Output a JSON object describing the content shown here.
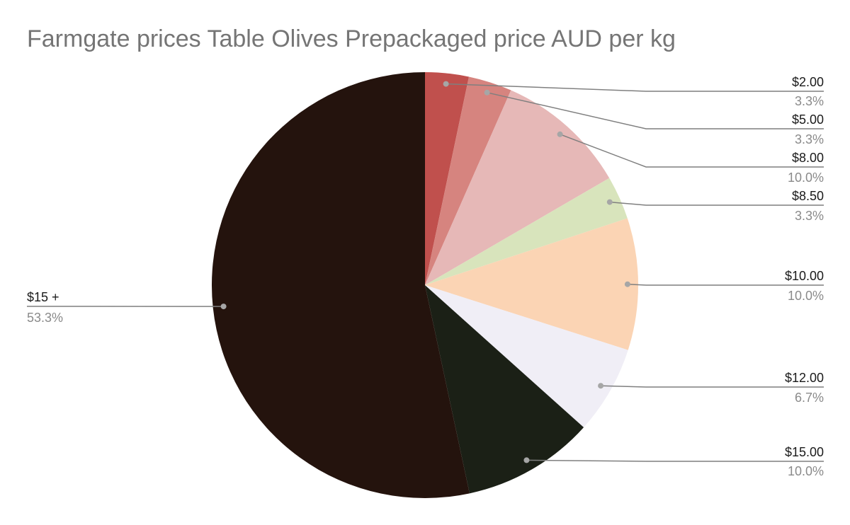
{
  "chart_data": {
    "type": "pie",
    "title": "Farmgate prices Table Olives Prepackaged price AUD per kg",
    "categories": [
      "$2.00",
      "$5.00",
      "$8.00",
      "$8.50",
      "$10.00",
      "$12.00",
      "$15.00",
      "$15 +"
    ],
    "values": [
      3.3,
      3.3,
      10.0,
      3.3,
      10.0,
      6.7,
      10.0,
      53.3
    ],
    "labels": [
      "3.3%",
      "3.3%",
      "10.0%",
      "3.3%",
      "10.0%",
      "6.7%",
      "10.0%",
      "53.3%"
    ],
    "colors": [
      "#c0504d",
      "#d6847f",
      "#e6b8b7",
      "#d8e4bc",
      "#fbd4b4",
      "#f0eef6",
      "#1b2016",
      "#24130d"
    ],
    "legend": "none",
    "label_position": "outside-with-leader-lines"
  }
}
